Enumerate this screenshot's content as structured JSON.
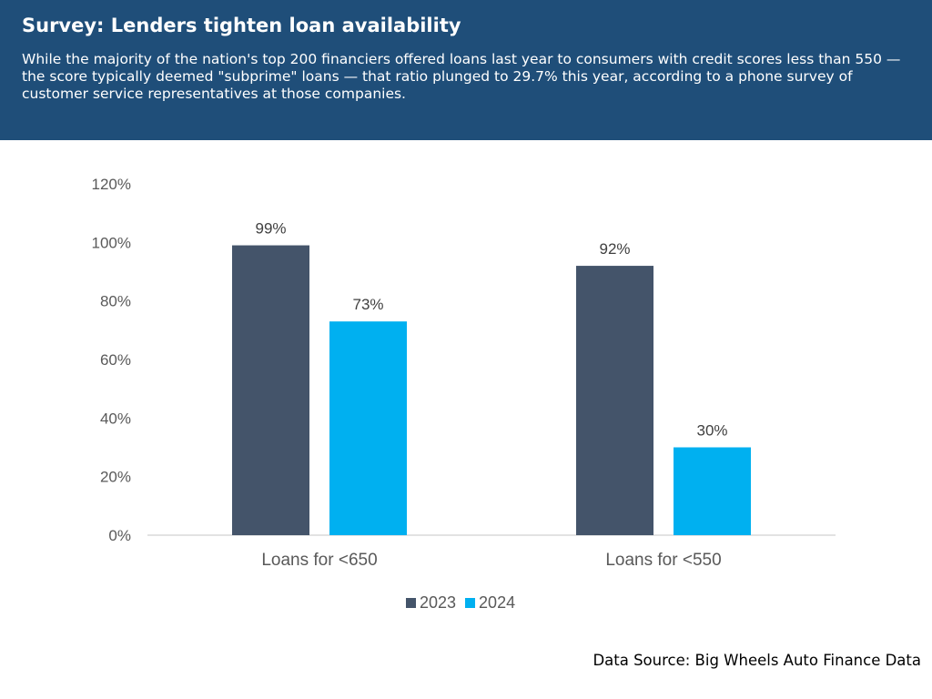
{
  "header": {
    "title": "Survey: Lenders tighten loan availability",
    "subtitle": "While the majority of the nation's top 200 financiers offered loans last year to consumers with credit scores less than 550 — the score typically deemed \"subprime\" loans — that ratio plunged to 29.7% this year, according to a phone survey of customer service representatives at those companies."
  },
  "chart_data": {
    "type": "bar",
    "categories": [
      "Loans for <650",
      "Loans for <550"
    ],
    "series": [
      {
        "name": "2023",
        "values": [
          99,
          92
        ],
        "labels": [
          "99%",
          "92%"
        ],
        "color": "#44546a"
      },
      {
        "name": "2024",
        "values": [
          73,
          30
        ],
        "labels": [
          "73%",
          "30%"
        ],
        "color": "#00b0f0"
      }
    ],
    "ylim": [
      0,
      120
    ],
    "yticks": [
      "0%",
      "20%",
      "40%",
      "60%",
      "80%",
      "100%",
      "120%"
    ],
    "grid": false,
    "legend": "bottom"
  },
  "footer": {
    "source": "Data Source: Big Wheels Auto Finance Data"
  }
}
